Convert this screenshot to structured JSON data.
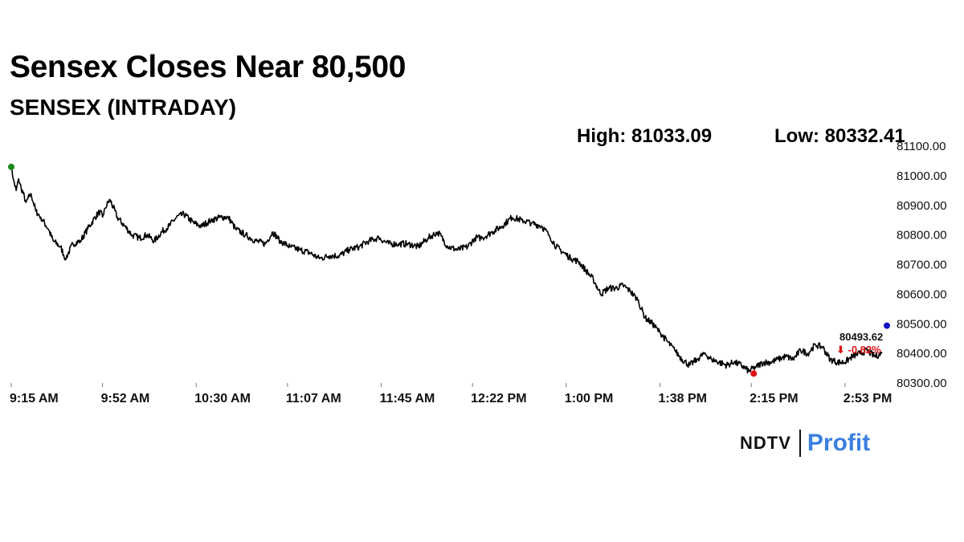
{
  "title": "Sensex Closes Near 80,500",
  "subtitle": "SENSEX (INTRADAY)",
  "high_label": "High: 81033.09",
  "low_label": "Low: 80332.41",
  "brand": {
    "ndtv": "NDTV",
    "profit": "Profit"
  },
  "chart_data": {
    "type": "line",
    "title": "Sensex Closes Near 80,500",
    "subtitle": "SENSEX (INTRADAY)",
    "xlabel": "",
    "ylabel": "",
    "ylim": [
      80300,
      81100
    ],
    "yticks": [
      80300,
      80400,
      80500,
      80600,
      80700,
      80800,
      80900,
      81000,
      81100
    ],
    "ytick_labels": [
      "80300.00",
      "80400.00",
      "80500.00",
      "80600.00",
      "80700.00",
      "80800.00",
      "80900.00",
      "81000.00",
      "81100.00"
    ],
    "xtick_labels": [
      "9:15 AM",
      "9:52 AM",
      "10:30 AM",
      "11:07 AM",
      "11:45 AM",
      "12:22 PM",
      "1:00 PM",
      "1:38 PM",
      "2:15 PM",
      "2:53 PM"
    ],
    "xtick_minutes": [
      555,
      592,
      630,
      667,
      705,
      742,
      780,
      818,
      855,
      893
    ],
    "series": [
      {
        "color": "#000000",
        "x_minutes": [
          555,
          556,
          557,
          558,
          559,
          561,
          563,
          565,
          567,
          570,
          572,
          575,
          577,
          580,
          583,
          586,
          589,
          591,
          592,
          593,
          595,
          598,
          601,
          604,
          607,
          610,
          613,
          616,
          619,
          622,
          625,
          629,
          632,
          636,
          640,
          643,
          646,
          650,
          654,
          658,
          661,
          664,
          668,
          672,
          676,
          680,
          684,
          688,
          692,
          696,
          700,
          704,
          708,
          712,
          716,
          720,
          724,
          728,
          732,
          736,
          740,
          743,
          746,
          750,
          754,
          758,
          762,
          766,
          770,
          773,
          776,
          779,
          782,
          785,
          788,
          791,
          794,
          797,
          800,
          803,
          806,
          809,
          812,
          815,
          818,
          821,
          824,
          827,
          830,
          833,
          836,
          839,
          842,
          845,
          848,
          851,
          854,
          857,
          860,
          863,
          866,
          869,
          872,
          875,
          878,
          881,
          884,
          887,
          890,
          893,
          896,
          899,
          902,
          905,
          908
        ],
        "values": [
          81030,
          80985,
          80950,
          80990,
          80960,
          80910,
          80940,
          80880,
          80860,
          80820,
          80780,
          80760,
          80720,
          80770,
          80780,
          80820,
          80860,
          80880,
          80860,
          80890,
          80920,
          80860,
          80830,
          80800,
          80790,
          80800,
          80780,
          80810,
          80830,
          80860,
          80870,
          80840,
          80830,
          80850,
          80860,
          80860,
          80820,
          80800,
          80780,
          80770,
          80810,
          80780,
          80760,
          80750,
          80740,
          80720,
          80730,
          80730,
          80750,
          80760,
          80780,
          80790,
          80770,
          80770,
          80770,
          80760,
          80790,
          80810,
          80760,
          80750,
          80760,
          80790,
          80790,
          80810,
          80830,
          80860,
          80850,
          80840,
          80830,
          80800,
          80760,
          80740,
          80720,
          80710,
          80680,
          80650,
          80600,
          80620,
          80620,
          80630,
          80610,
          80580,
          80520,
          80500,
          80470,
          80440,
          80410,
          80380,
          80360,
          80380,
          80400,
          80380,
          80370,
          80360,
          80370,
          80360,
          80340,
          80355,
          80370,
          80370,
          80380,
          80390,
          80380,
          80410,
          80400,
          80430,
          80420,
          80380,
          80370,
          80370,
          80390,
          80400,
          80410,
          80390,
          80400
        ]
      }
    ],
    "open_marker": {
      "x_minutes": 555,
      "value": 81030,
      "color": "#1a8a1a"
    },
    "low_marker": {
      "x_minutes": 856,
      "value": 80332,
      "color": "#e01010"
    },
    "last_marker": {
      "value": 80493.62,
      "color": "#1010c0"
    },
    "last_value_label": "80493.62",
    "change_label": "⬇ -0.82%",
    "grid": false,
    "legend": "none"
  }
}
